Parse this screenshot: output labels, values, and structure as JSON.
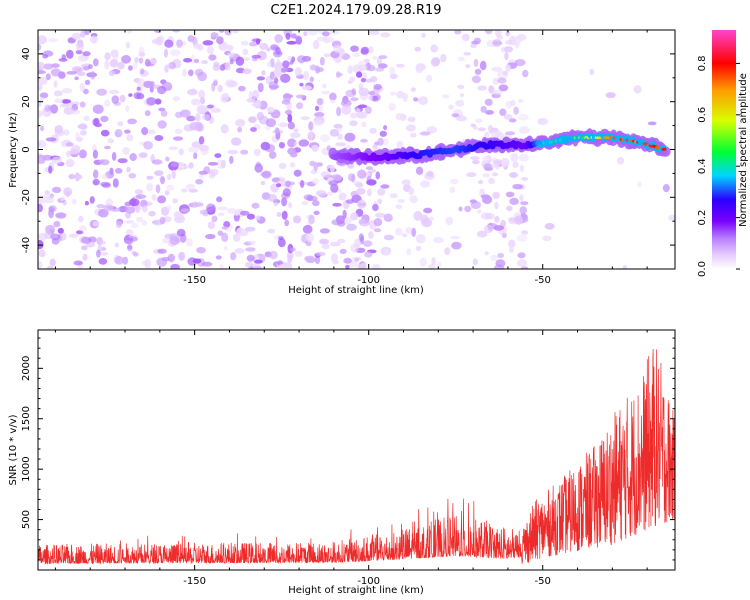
{
  "title": "C2E1.2024.179.09.28.R19",
  "colors": {
    "snr_line": "#ee2b2b",
    "axis": "#000000",
    "background": "#ffffff"
  },
  "chart_data": [
    {
      "type": "heatmap",
      "xlabel": "Height of straight line (km)",
      "ylabel": "Frequency (Hz)",
      "xlim": [
        -195,
        -12
      ],
      "ylim": [
        -50,
        50
      ],
      "x_ticks": [
        -150,
        -100,
        -50
      ],
      "y_ticks": [
        -40,
        -20,
        0,
        20,
        40
      ],
      "colorbar": {
        "label": "Normalized spectral amplitude",
        "range": [
          0,
          0.93
        ],
        "ticks": [
          0.0,
          0.2,
          0.4,
          0.6,
          0.8
        ],
        "colormap": [
          "#ffffff",
          "#e6ccff",
          "#b57cff",
          "#7a00ff",
          "#2a00ff",
          "#00d5ff",
          "#00ff33",
          "#d9ff00",
          "#ff9a00",
          "#ff0000",
          "#ff44cc"
        ]
      },
      "ridge": [
        {
          "x": -110,
          "y": -3,
          "amp": 0.22
        },
        {
          "x": -95,
          "y": -3,
          "amp": 0.3
        },
        {
          "x": -85,
          "y": -2,
          "amp": 0.38
        },
        {
          "x": -75,
          "y": 0,
          "amp": 0.4
        },
        {
          "x": -65,
          "y": 2,
          "amp": 0.36
        },
        {
          "x": -55,
          "y": 2,
          "amp": 0.3
        },
        {
          "x": -48,
          "y": 3,
          "amp": 0.55
        },
        {
          "x": -40,
          "y": 5,
          "amp": 0.62
        },
        {
          "x": -30,
          "y": 5,
          "amp": 0.82
        },
        {
          "x": -22,
          "y": 3,
          "amp": 0.88
        },
        {
          "x": -15,
          "y": 0,
          "amp": 0.9
        }
      ],
      "noise_regions": [
        {
          "x_range": [
            -195,
            -95
          ],
          "density": "high"
        },
        {
          "x_range": [
            -95,
            -70
          ],
          "density": "low"
        },
        {
          "x_range": [
            -70,
            -55
          ],
          "density": "medium"
        },
        {
          "x_range": [
            -55,
            -12
          ],
          "density": "very-low"
        }
      ]
    },
    {
      "type": "line",
      "xlabel": "Height of straight line (km)",
      "ylabel": "SNR (10 * v/v)",
      "xlim": [
        -195,
        -12
      ],
      "ylim": [
        0,
        2380
      ],
      "x_ticks": [
        -150,
        -100,
        -50
      ],
      "y_ticks": [
        500,
        1000,
        1500,
        2000
      ],
      "series": [
        {
          "envelope": [
            {
              "x": -195,
              "y": 300
            },
            {
              "x": -160,
              "y": 320
            },
            {
              "x": -130,
              "y": 330
            },
            {
              "x": -110,
              "y": 340
            },
            {
              "x": -95,
              "y": 450
            },
            {
              "x": -85,
              "y": 550
            },
            {
              "x": -75,
              "y": 650
            },
            {
              "x": -65,
              "y": 570
            },
            {
              "x": -56,
              "y": 450
            },
            {
              "x": -52,
              "y": 700
            },
            {
              "x": -45,
              "y": 900
            },
            {
              "x": -35,
              "y": 1250
            },
            {
              "x": -28,
              "y": 1650
            },
            {
              "x": -22,
              "y": 1900
            },
            {
              "x": -18,
              "y": 2300
            },
            {
              "x": -15,
              "y": 1950
            },
            {
              "x": -12,
              "y": 1500
            }
          ],
          "floor": [
            {
              "x": -195,
              "y": 0
            },
            {
              "x": -60,
              "y": 0
            },
            {
              "x": -50,
              "y": 120
            },
            {
              "x": -30,
              "y": 250
            },
            {
              "x": -12,
              "y": 500
            }
          ]
        }
      ]
    }
  ]
}
